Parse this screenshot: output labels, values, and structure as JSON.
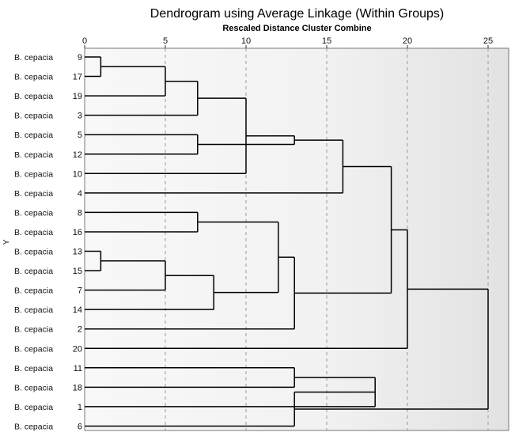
{
  "chart_data": {
    "type": "dendrogram",
    "title": "Dendrogram using Average Linkage (Within Groups)",
    "xlabel": "Rescaled Distance Cluster Combine",
    "ylabel": "Y",
    "xlim": [
      0,
      25
    ],
    "xticks": [
      0,
      5,
      10,
      15,
      20,
      25
    ],
    "grid": true,
    "leaves": [
      {
        "label": "B. cepacia",
        "case": "9"
      },
      {
        "label": "B. cepacia",
        "case": "17"
      },
      {
        "label": "B. cepacia",
        "case": "19"
      },
      {
        "label": "B. cepacia",
        "case": "3"
      },
      {
        "label": "B. cepacia",
        "case": "5"
      },
      {
        "label": "B. cepacia",
        "case": "12"
      },
      {
        "label": "B. cepacia",
        "case": "10"
      },
      {
        "label": "B. cepacia",
        "case": "4"
      },
      {
        "label": "B. cepacia",
        "case": "8"
      },
      {
        "label": "B. cepacia",
        "case": "16"
      },
      {
        "label": "B. cepacia",
        "case": "13"
      },
      {
        "label": "B. cepacia",
        "case": "15"
      },
      {
        "label": "B. cepacia",
        "case": "7"
      },
      {
        "label": "B. cepacia",
        "case": "14"
      },
      {
        "label": "B. cepacia",
        "case": "2"
      },
      {
        "label": "B. cepacia",
        "case": "20"
      },
      {
        "label": "B. cepacia",
        "case": "11"
      },
      {
        "label": "B. cepacia",
        "case": "18"
      },
      {
        "label": "B. cepacia",
        "case": "1"
      },
      {
        "label": "B. cepacia",
        "case": "6"
      }
    ],
    "merges": [
      {
        "a": 0,
        "b": 1,
        "d": 1
      },
      {
        "a": 10,
        "b": 11,
        "d": 1
      },
      {
        "a": 20,
        "b": 2,
        "d": 5
      },
      {
        "a": 21,
        "b": 12,
        "d": 5
      },
      {
        "a": 4,
        "b": 5,
        "d": 7
      },
      {
        "a": 8,
        "b": 9,
        "d": 7
      },
      {
        "a": 22,
        "b": 3,
        "d": 7
      },
      {
        "a": 23,
        "b": 13,
        "d": 8
      },
      {
        "a": 26,
        "b": 6,
        "d": 10
      },
      {
        "a": 25,
        "b": 27,
        "d": 12
      },
      {
        "a": 16,
        "b": 17,
        "d": 13
      },
      {
        "a": 28,
        "b": 24,
        "d": 13
      },
      {
        "a": 29,
        "b": 14,
        "d": 13
      },
      {
        "a": 31,
        "b": 7,
        "d": 16
      },
      {
        "a": 30,
        "b": 18,
        "d": 18
      },
      {
        "a": 33,
        "b": 32,
        "d": 19
      },
      {
        "a": 34,
        "b": 19,
        "d": 13
      },
      {
        "a": 35,
        "b": 15,
        "d": 20
      },
      {
        "a": 37,
        "b": 36,
        "d": 25
      }
    ]
  }
}
